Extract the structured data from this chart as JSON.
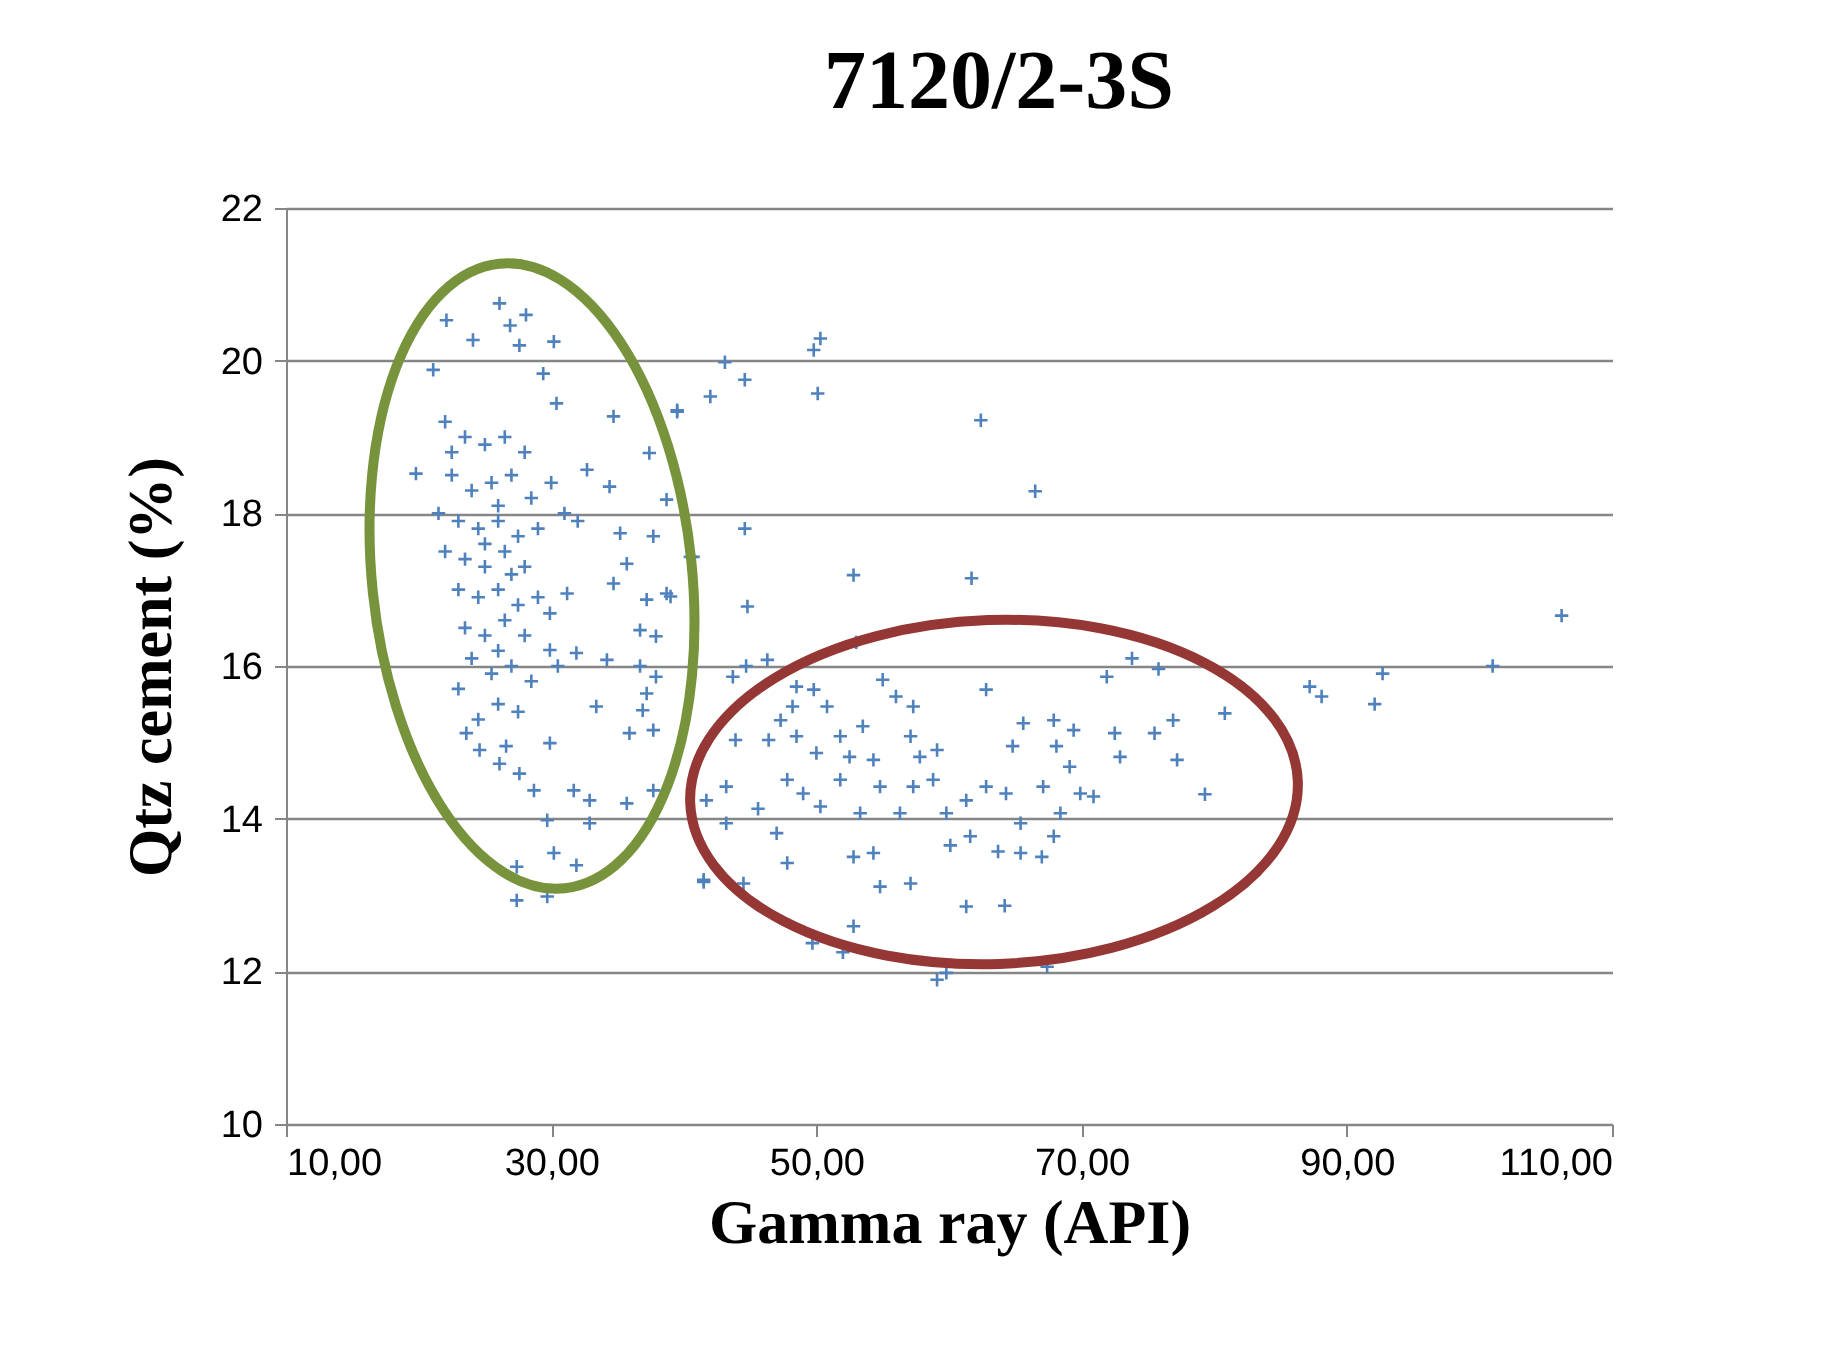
{
  "chart_data": {
    "type": "scatter",
    "title": "7120/2-3S",
    "xlabel": "Gamma ray (API)",
    "ylabel": "Qtz cement (%)",
    "xlim": [
      10,
      110
    ],
    "ylim": [
      10,
      22
    ],
    "xticks": [
      {
        "value": 10,
        "label": "10,00"
      },
      {
        "value": 30,
        "label": "30,00"
      },
      {
        "value": 50,
        "label": "50,00"
      },
      {
        "value": 70,
        "label": "70,00"
      },
      {
        "value": 90,
        "label": "90,00"
      },
      {
        "value": 110,
        "label": "110,00"
      }
    ],
    "yticks": [
      10,
      12,
      14,
      16,
      18,
      20,
      22
    ],
    "grid": "y",
    "marker": "cross",
    "series": [
      {
        "color": "#4f81bd",
        "x": [
          26.1,
          22.1,
          28.1,
          26.9,
          24.1,
          30.2,
          27.6,
          29.4,
          34.7,
          39.5,
          42.0,
          37.4,
          30.4,
          21.1,
          19.8,
          32.7,
          34.4,
          38.7,
          37.7,
          35.2,
          35.7,
          34.7,
          40.7,
          39.0,
          37.2,
          31.2,
          29.9,
          36.7,
          37.9,
          34.2,
          36.7,
          37.9,
          31.9,
          29.9,
          37.2,
          33.4,
          36.9,
          35.9,
          37.7,
          29.9,
          26.6,
          23.6,
          24.6,
          26.1,
          27.6,
          28.7,
          31.7,
          32.9,
          35.7,
          37.7,
          29.7,
          32.9,
          30.2,
          31.9,
          27.4,
          27.4,
          29.7,
          41.5,
          22,
          23.5,
          25,
          26.5,
          28,
          22.5,
          24,
          25.5,
          27,
          28.5,
          30,
          21.5,
          23,
          24.5,
          26,
          27.5,
          29,
          22,
          23.5,
          25,
          26.5,
          28,
          23,
          24.5,
          26,
          27.5,
          29,
          23.5,
          25,
          26.5,
          28,
          24,
          25.5,
          27,
          28.5,
          23,
          26,
          24.5,
          27.5,
          22.5,
          26,
          25,
          27,
          26,
          30.5,
          31,
          32,
          50.3,
          62.4,
          66.5,
          44.6,
          52.8,
          61.7,
          106.2,
          101.0,
          92.7,
          92.1,
          87.2,
          88.1,
          80.8,
          79.3,
          77.2,
          73.8,
          75.8,
          71.9,
          76.9,
          72.9,
          70.9,
          67.4,
          59.1,
          59.8,
          64.2,
          61.3,
          52.0,
          49.7,
          52.8,
          41.5,
          44.5,
          47.8,
          54.8,
          57.1,
          54.3,
          52.8,
          65.4,
          67.0,
          67.9,
          63.7,
          60.1,
          61.6,
          47.0,
          43.2,
          41.7,
          43.2,
          45.6,
          47.8,
          49.0,
          50.3,
          51.8,
          53.3,
          54.8,
          56.3,
          57.3,
          58.8,
          59.8,
          61.3,
          62.8,
          64.3,
          65.4,
          67.1,
          68.4,
          69.9,
          68.1,
          69.1,
          64.8,
          65.6,
          67.9,
          69.4,
          72.5,
          75.5,
          62.8,
          57.3,
          56.0,
          55.0,
          59.1,
          57.8,
          57.1,
          53.5,
          51.8,
          50.8,
          49.8,
          48.5,
          48.2,
          47.3,
          48.5,
          46.4,
          43.9,
          50.0,
          52.5,
          54.3,
          43.7,
          46.3,
          44.7,
          53.0,
          44.8,
          38.7,
          40.5,
          39.5,
          43.1,
          44.6,
          50.1,
          49.8
        ],
        "values": [
          20.75,
          20.53,
          20.6,
          20.46,
          20.27,
          20.25,
          20.2,
          19.83,
          19.27,
          19.33,
          19.53,
          18.79,
          19.44,
          19.88,
          18.52,
          18.57,
          18.35,
          18.18,
          17.7,
          17.74,
          17.34,
          17.08,
          17.43,
          16.91,
          16.87,
          16.95,
          16.69,
          16.47,
          16.39,
          16.08,
          16.0,
          15.86,
          16.17,
          16.21,
          15.64,
          15.47,
          15.42,
          15.12,
          15.16,
          14.99,
          14.95,
          15.12,
          14.9,
          14.72,
          14.59,
          14.37,
          14.37,
          14.24,
          14.2,
          14.37,
          13.98,
          13.94,
          13.55,
          13.39,
          13.37,
          12.93,
          12.98,
          13.2,
          19.2,
          19.0,
          18.9,
          19.0,
          18.8,
          18.5,
          18.3,
          18.4,
          18.5,
          18.2,
          18.4,
          18.0,
          17.9,
          17.8,
          17.9,
          17.7,
          17.8,
          17.5,
          17.4,
          17.3,
          17.5,
          17.3,
          17.0,
          16.9,
          17.0,
          16.8,
          16.9,
          16.5,
          16.4,
          16.6,
          16.4,
          16.1,
          15.9,
          16.0,
          15.8,
          15.7,
          15.5,
          15.3,
          15.4,
          18.8,
          18.1,
          17.6,
          17.2,
          16.2,
          16.0,
          18.0,
          17.9,
          20.29,
          19.22,
          18.29,
          17.8,
          17.19,
          17.15,
          16.66,
          16.0,
          15.9,
          15.5,
          15.73,
          15.6,
          15.38,
          14.32,
          14.77,
          16.1,
          15.96,
          15.86,
          15.29,
          14.81,
          14.29,
          12.06,
          11.89,
          11.98,
          12.86,
          12.85,
          12.25,
          12.37,
          12.59,
          13.17,
          13.15,
          13.42,
          13.11,
          13.15,
          13.55,
          13.5,
          13.55,
          13.5,
          13.77,
          13.57,
          13.65,
          13.77,
          13.81,
          13.94,
          14.24,
          14.42,
          14.13,
          14.51,
          14.33,
          14.16,
          14.51,
          14.07,
          14.42,
          14.07,
          14.42,
          14.51,
          14.07,
          14.24,
          14.42,
          14.33,
          13.94,
          14.42,
          14.07,
          14.33,
          14.95,
          14.68,
          14.95,
          15.25,
          15.29,
          15.16,
          15.12,
          15.12,
          15.69,
          15.47,
          15.6,
          15.82,
          14.9,
          14.81,
          15.08,
          15.21,
          15.08,
          15.47,
          15.69,
          15.73,
          15.47,
          15.29,
          15.08,
          15.03,
          15.03,
          14.86,
          14.81,
          14.77,
          15.86,
          16.08,
          16.0,
          16.31,
          16.78,
          16.95,
          17.43,
          19.35,
          19.98,
          19.75,
          19.57,
          20.14
        ]
      }
    ]
  }
}
